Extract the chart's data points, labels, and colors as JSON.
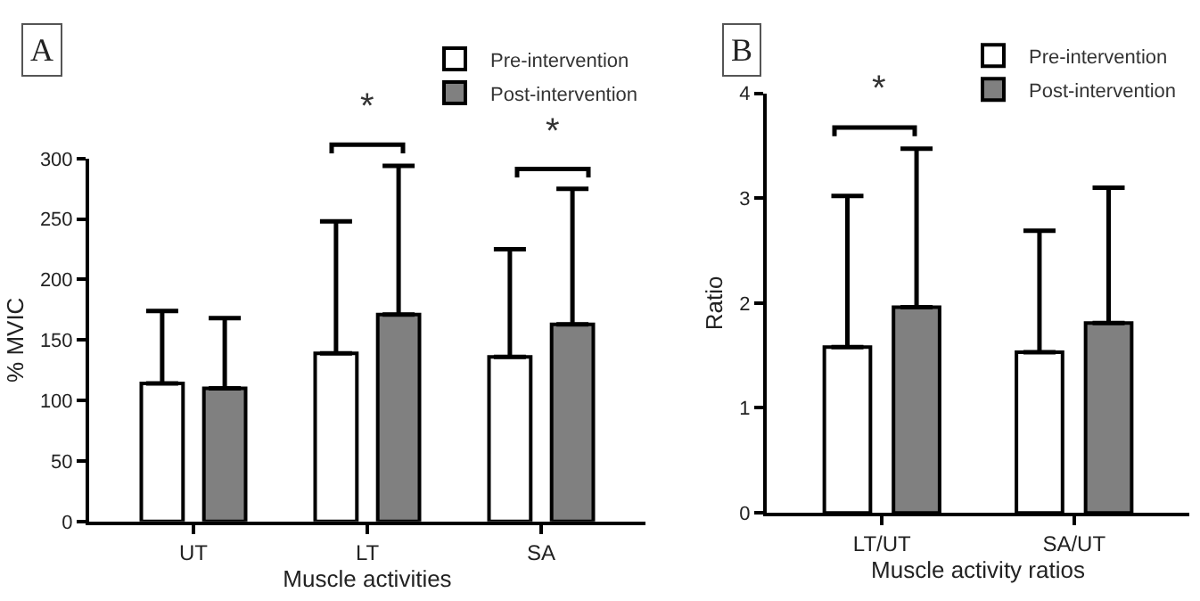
{
  "chart_data": [
    {
      "type": "bar",
      "title": "A",
      "xlabel": "Muscle activities",
      "ylabel": "% MVIC",
      "categories": [
        "UT",
        "LT",
        "SA"
      ],
      "series": [
        {
          "name": "Pre-intervention",
          "color": "#ffffff",
          "values": [
            114,
            139,
            136
          ],
          "errors": [
            [
              114,
              174
            ],
            [
              139,
              248
            ],
            [
              136,
              225
            ]
          ]
        },
        {
          "name": "Post-intervention",
          "color": "#808080",
          "values": [
            110,
            171,
            163
          ],
          "errors": [
            [
              110,
              168
            ],
            [
              171,
              294
            ],
            [
              163,
              275
            ]
          ]
        }
      ],
      "ylim": [
        0,
        300
      ],
      "yticks": [
        0,
        50,
        100,
        150,
        200,
        250,
        300
      ],
      "legend": "top right",
      "annotations": [
        "*",
        "*"
      ]
    },
    {
      "type": "bar",
      "title": "B",
      "xlabel": "Muscle activity ratios",
      "ylabel": "Ratio",
      "categories": [
        "LT/UT",
        "SA/UT"
      ],
      "series": [
        {
          "name": "Pre-intervention",
          "color": "#ffffff",
          "values": [
            1.58,
            1.53
          ],
          "errors": [
            [
              1.58,
              3.02
            ],
            [
              1.53,
              2.69
            ]
          ]
        },
        {
          "name": "Post-intervention",
          "color": "#808080",
          "values": [
            1.96,
            1.81
          ],
          "errors": [
            [
              1.96,
              3.47
            ],
            [
              1.81,
              3.1
            ]
          ]
        }
      ],
      "ylim": [
        0,
        4
      ],
      "yticks": [
        0,
        1,
        2,
        3,
        4
      ],
      "legend": "top right",
      "annotations": [
        "*"
      ]
    }
  ]
}
